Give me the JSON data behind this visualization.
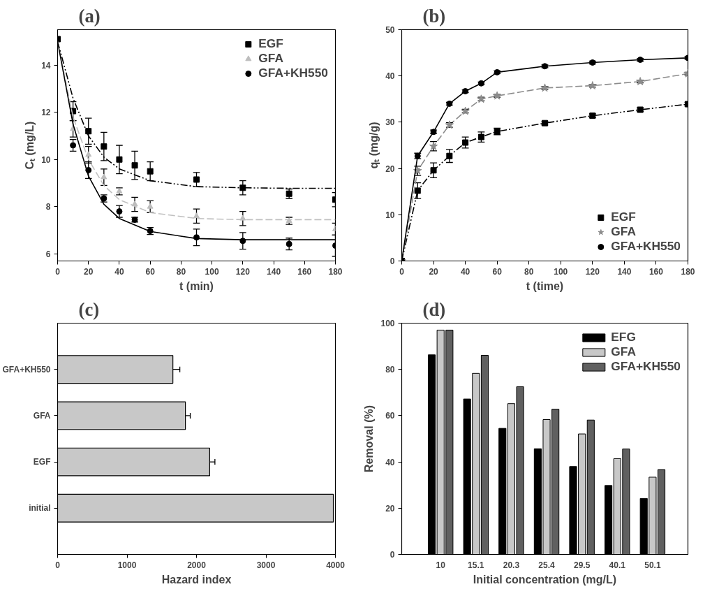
{
  "chart_data": [
    {
      "type": "scatter",
      "title": "(a)",
      "xlabel": "t (min)",
      "ylabel": "Cₜ (mg/L)",
      "xlim": [
        0,
        180
      ],
      "ylim": [
        5.7,
        15.5
      ],
      "xticks": [
        0,
        20,
        40,
        60,
        80,
        100,
        120,
        140,
        160,
        180
      ],
      "yticks": [
        6,
        8,
        10,
        12,
        14
      ],
      "legend": "top right",
      "series": [
        {
          "name": "EGF",
          "type": "scatter",
          "marker": "square",
          "color": "#000000",
          "x": [
            0,
            10,
            20,
            30,
            40,
            50,
            60,
            90,
            120,
            150,
            180
          ],
          "values": [
            15.1,
            12.05,
            11.2,
            10.55,
            10.0,
            9.75,
            9.5,
            9.15,
            8.8,
            8.55,
            8.3
          ],
          "errors": [
            null,
            0.4,
            0.55,
            0.6,
            0.6,
            0.6,
            0.4,
            0.3,
            0.3,
            0.2,
            0.3
          ]
        },
        {
          "name": "GFA",
          "type": "scatter",
          "marker": "triangle",
          "color": "#bdbdbd",
          "x": [
            10,
            20,
            30,
            40,
            50,
            60,
            90,
            120,
            150,
            180
          ],
          "values": [
            11.3,
            10.2,
            9.25,
            8.65,
            8.1,
            8.0,
            7.6,
            7.5,
            7.4,
            7.05
          ],
          "errors": [
            0.35,
            0.35,
            0.35,
            0.15,
            0.3,
            0.25,
            0.3,
            0.3,
            0.15,
            0.25
          ]
        },
        {
          "name": "GFA+KH550",
          "type": "scatter",
          "marker": "circle",
          "color": "#000000",
          "x": [
            10,
            20,
            30,
            40,
            50,
            60,
            90,
            120,
            150,
            180
          ],
          "values": [
            10.6,
            9.55,
            8.35,
            7.8,
            7.45,
            6.97,
            6.7,
            6.55,
            6.42,
            6.35
          ],
          "errors": [
            0.25,
            0.35,
            0.15,
            0.25,
            0.1,
            0.15,
            0.35,
            0.35,
            0.25,
            0.45
          ]
        },
        {
          "type": "line",
          "line_style": "dashdot",
          "color": "#000000",
          "x": [
            0,
            10,
            20,
            30,
            40,
            60,
            90,
            120,
            150,
            180
          ],
          "values": [
            15.0,
            12.6,
            11.0,
            10.1,
            9.6,
            9.1,
            8.85,
            8.8,
            8.78,
            8.78
          ]
        },
        {
          "type": "line",
          "line_style": "dashed",
          "color": "#c0c0c0",
          "x": [
            0,
            10,
            20,
            30,
            40,
            60,
            90,
            120,
            150,
            180
          ],
          "values": [
            15.0,
            11.8,
            10.0,
            8.9,
            8.3,
            7.75,
            7.5,
            7.45,
            7.45,
            7.45
          ]
        },
        {
          "type": "line",
          "line_style": "solid",
          "color": "#000000",
          "x": [
            0,
            10,
            20,
            30,
            40,
            60,
            90,
            120,
            150,
            180
          ],
          "values": [
            15.0,
            11.5,
            9.3,
            8.1,
            7.5,
            6.95,
            6.65,
            6.6,
            6.6,
            6.6
          ]
        }
      ]
    },
    {
      "type": "line",
      "title": "(b)",
      "xlabel": "t (time)",
      "ylabel": "qₜ (mg/g)",
      "xlim": [
        0,
        180
      ],
      "ylim": [
        0,
        50
      ],
      "xticks": [
        0,
        20,
        40,
        60,
        80,
        100,
        120,
        140,
        160,
        180
      ],
      "yticks": [
        0,
        10,
        20,
        30,
        40,
        50
      ],
      "legend": "bottom right",
      "x": [
        0,
        10,
        20,
        30,
        40,
        50,
        60,
        90,
        120,
        150,
        180
      ],
      "series": [
        {
          "name": "EGF",
          "marker": "square",
          "line_style": "dashdot",
          "color": "#000000",
          "values": [
            0,
            15.2,
            19.6,
            22.7,
            25.6,
            26.8,
            28.0,
            29.8,
            31.4,
            32.7,
            33.9
          ],
          "errors": [
            null,
            1.7,
            1.6,
            1.4,
            1.2,
            1.1,
            0.7,
            0.4,
            0.4,
            0.4,
            0.4
          ]
        },
        {
          "name": "GFA",
          "marker": "star",
          "line_style": "dashed",
          "color": "#8c8c8c",
          "values": [
            0,
            19.5,
            24.8,
            29.4,
            32.4,
            35.0,
            35.7,
            37.4,
            37.9,
            38.8,
            40.5
          ],
          "errors": [
            null,
            1.0,
            1.0,
            0.5,
            0.4,
            0.4,
            0.3,
            0.3,
            0.3,
            0.3,
            0.3
          ]
        },
        {
          "name": "GFA+KH550",
          "marker": "circle",
          "line_style": "solid",
          "color": "#000000",
          "values": [
            0,
            22.7,
            27.9,
            34.0,
            36.7,
            38.4,
            40.8,
            42.1,
            42.9,
            43.5,
            43.9
          ],
          "errors": [
            null,
            0.6,
            0.4,
            0.3,
            0.3,
            0.3,
            0.3,
            0.3,
            0.3,
            0.3,
            0.3
          ]
        }
      ]
    },
    {
      "type": "bar",
      "orientation": "horizontal",
      "title": "(c)",
      "xlabel": "Hazard index",
      "categories": [
        "GFA+KH550",
        "GFA",
        "EGF",
        "initial"
      ],
      "values": [
        1660,
        1840,
        2190,
        3970
      ],
      "errors": [
        100,
        70,
        75,
        null
      ],
      "color": "#c8c8c8",
      "xlim": [
        0,
        4000
      ],
      "xticks": [
        0,
        1000,
        2000,
        3000,
        4000
      ]
    },
    {
      "type": "bar",
      "title": "(d)",
      "xlabel": "Initial concentration (mg/L)",
      "ylabel": "Removal (%)",
      "categories": [
        "10",
        "15.1",
        "20.3",
        "25.4",
        "29.5",
        "40.1",
        "50.1"
      ],
      "ylim": [
        0,
        100
      ],
      "yticks": [
        0,
        20,
        40,
        60,
        80,
        100
      ],
      "legend": "top right",
      "series": [
        {
          "name": "EFG",
          "color": "#000000",
          "values": [
            86.3,
            67.2,
            54.5,
            45.7,
            38.0,
            29.8,
            24.2
          ]
        },
        {
          "name": "GFA",
          "color": "#c8c8c8",
          "values": [
            97,
            78.3,
            65.2,
            58.3,
            52.1,
            41.4,
            33.4
          ]
        },
        {
          "name": "GFA+KH550",
          "color": "#606060",
          "values": [
            97,
            86.1,
            72.5,
            62.8,
            58.1,
            45.6,
            36.7
          ]
        }
      ]
    }
  ]
}
